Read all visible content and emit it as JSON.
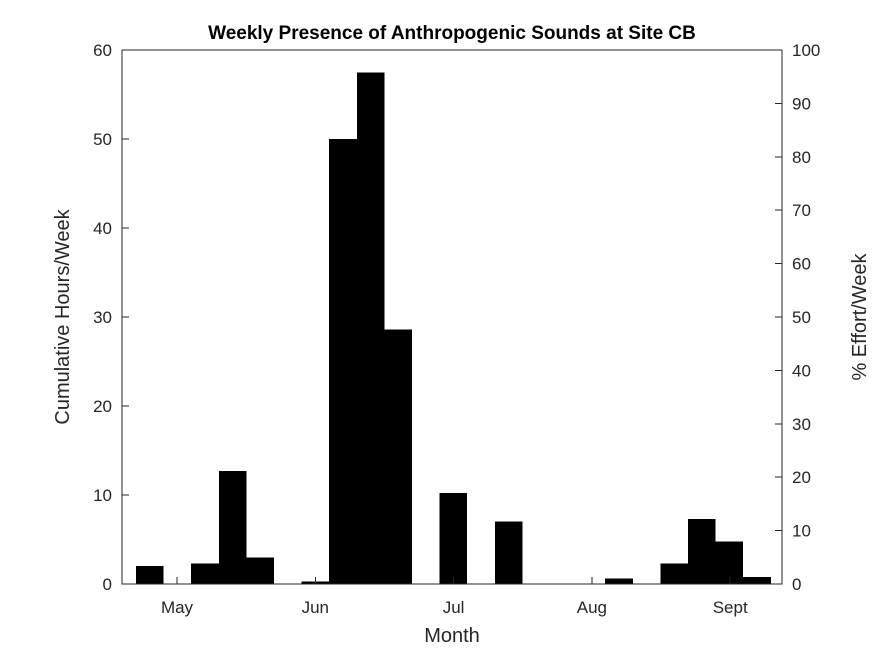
{
  "chart_data": {
    "type": "bar",
    "title": "Weekly Presence of Anthropogenic Sounds at Site CB",
    "xlabel": "Month",
    "ylabel": "Cumulative Hours/Week",
    "ylabel_right": "% Effort/Week",
    "x_tick_labels": [
      "May",
      "Jun",
      "Jul",
      "Aug",
      "Sept"
    ],
    "y_ticks": [
      0,
      10,
      20,
      30,
      40,
      50,
      60
    ],
    "y_ticks_right": [
      0,
      10,
      20,
      30,
      40,
      50,
      60,
      70,
      80,
      90,
      100
    ],
    "ylim": [
      0,
      60
    ],
    "ylim_right": [
      0,
      100
    ],
    "grid": false,
    "bar_color": "#000000",
    "series": [
      {
        "values": [
          2.0,
          0,
          2.3,
          12.7,
          3.0,
          0,
          0.3,
          50.0,
          57.5,
          28.6,
          0,
          10.2,
          0,
          7.0,
          0,
          0,
          0,
          0.6,
          0,
          2.3,
          7.3,
          4.8,
          0.8
        ]
      }
    ]
  }
}
